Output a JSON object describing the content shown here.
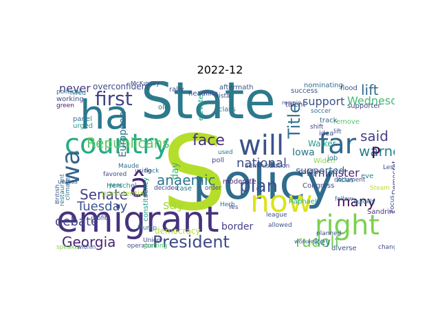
{
  "title": "2022-12",
  "words": [
    {
      "text": "State",
      "color": "#2c7a8c"
    },
    {
      "text": "policy",
      "color": "#2f6c8e"
    },
    {
      "text": "S",
      "color": "#b5de2b"
    },
    {
      "text": "ha",
      "color": "#2a788e"
    },
    {
      "text": "emigrant",
      "color": "#46327e"
    },
    {
      "text": "now",
      "color": "#dde318"
    },
    {
      "text": "right",
      "color": "#7ad151"
    },
    {
      "text": "country",
      "color": "#25ab82"
    },
    {
      "text": "will",
      "color": "#3b528b"
    },
    {
      "text": "far",
      "color": "#31688e"
    },
    {
      "text": "wa",
      "color": "#33638d"
    },
    {
      "text": "â",
      "color": "#482878"
    },
    {
      "text": "President",
      "color": "#3e4a89"
    },
    {
      "text": "first",
      "color": "#414487"
    },
    {
      "text": "Republicans",
      "color": "#5ec962"
    },
    {
      "text": "Senate",
      "color": "#424086"
    },
    {
      "text": "Georgia",
      "color": "#482475"
    },
    {
      "text": "plan",
      "color": "#3b528b"
    },
    {
      "text": "rudolf",
      "color": "#6ece58"
    },
    {
      "text": "anaemic",
      "color": "#2a768e"
    },
    {
      "text": "face",
      "color": "#472d7b"
    },
    {
      "text": "national",
      "color": "#3d4d8a"
    },
    {
      "text": "say",
      "color": "#9fda3a"
    },
    {
      "text": "Tuesday",
      "color": "#3a548c"
    },
    {
      "text": "debate",
      "color": "#414487"
    },
    {
      "text": "never",
      "color": "#443b84"
    },
    {
      "text": "lift",
      "color": "#31688e"
    },
    {
      "text": "said",
      "color": "#433e85"
    },
    {
      "text": "warned",
      "color": "#26828e"
    },
    {
      "text": "many",
      "color": "#440154"
    },
    {
      "text": "Wednesday",
      "color": "#3fbc73"
    },
    {
      "text": "support",
      "color": "#3a548c"
    },
    {
      "text": "Title",
      "color": "#2d708e"
    },
    {
      "text": "minister",
      "color": "#482576"
    },
    {
      "text": "democracy",
      "color": "#b2dd2d"
    },
    {
      "text": "European",
      "color": "#2e6f8e"
    },
    {
      "text": "day",
      "color": "#35b779"
    },
    {
      "text": "border",
      "color": "#433e85"
    },
    {
      "text": "Iowa",
      "color": "#2a778e"
    },
    {
      "text": "Walker",
      "color": "#1fa088"
    },
    {
      "text": "supported",
      "color": "#2e6e8e"
    },
    {
      "text": "P",
      "color": "#440154"
    },
    {
      "text": "key",
      "color": "#2d708e"
    },
    {
      "text": "overconfident",
      "color": "#3e4989"
    },
    {
      "text": "panel",
      "color": "#2a788e"
    },
    {
      "text": "urged",
      "color": "#1f978b"
    },
    {
      "text": "working",
      "color": "#3e4a89"
    },
    {
      "text": "Herschel",
      "color": "#218f8d"
    },
    {
      "text": "presidential",
      "color": "#a5db36"
    },
    {
      "text": "constituency",
      "color": "#1e9b8a"
    },
    {
      "text": "class",
      "color": "#2b748e"
    },
    {
      "text": "poll",
      "color": "#3e4989"
    },
    {
      "text": "moderate",
      "color": "#482878"
    },
    {
      "text": "elevated",
      "color": "#1f9f88"
    },
    {
      "text": "headline",
      "color": "#3e4a89"
    },
    {
      "text": "aftermath",
      "color": "#3c508b"
    },
    {
      "text": "Raphael",
      "color": "#29af7f"
    },
    {
      "text": "Widen",
      "color": "#87d549"
    },
    {
      "text": "diverse",
      "color": "#3c4f8a"
    },
    {
      "text": "flood",
      "color": "#3b528b"
    },
    {
      "text": "supporter",
      "color": "#433e85"
    },
    {
      "text": "nominating",
      "color": "#2f6c8e"
    },
    {
      "text": "success",
      "color": "#3b528b"
    },
    {
      "text": "remove",
      "color": "#52c569"
    },
    {
      "text": "Democrat",
      "color": "#453781"
    },
    {
      "text": "eve",
      "color": "#287d8e"
    },
    {
      "text": "idea",
      "color": "#3e4a89"
    },
    {
      "text": "talent",
      "color": "#472f7d"
    },
    {
      "text": "card",
      "color": "#481c6e"
    },
    {
      "text": "job",
      "color": "#2a778e"
    },
    {
      "text": "Atlas",
      "color": "#24878e"
    },
    {
      "text": "Sandrine",
      "color": "#46327e"
    },
    {
      "text": "track",
      "color": "#31688e"
    },
    {
      "text": "Congress",
      "color": "#3f4889"
    },
    {
      "text": "league",
      "color": "#3d4e8a"
    },
    {
      "text": "administration",
      "color": "#3b528b"
    },
    {
      "text": "Union",
      "color": "#404588"
    },
    {
      "text": "Plump",
      "color": "#2c718e"
    },
    {
      "text": "operator",
      "color": "#3e4989"
    },
    {
      "text": "grafting",
      "color": "#4ac16d"
    },
    {
      "text": "speaker",
      "color": "#84d44b"
    },
    {
      "text": "within",
      "color": "#3c4f8a"
    },
    {
      "text": "political",
      "color": "#2d708e"
    },
    {
      "text": "hired",
      "color": "#2e6f8e"
    },
    {
      "text": "green",
      "color": "#471365"
    },
    {
      "text": "unless",
      "color": "#3b528b"
    },
    {
      "text": "rally",
      "color": "#3e4a89"
    },
    {
      "text": "old",
      "color": "#2c728e"
    },
    {
      "text": "decided",
      "color": "#404688"
    },
    {
      "text": "using",
      "color": "#3d4e8a"
    },
    {
      "text": "flock",
      "color": "#2a788e"
    },
    {
      "text": "Maude",
      "color": "#2f6c8e"
    },
    {
      "text": "favored",
      "color": "#3f4889"
    },
    {
      "text": "year",
      "color": "#25848e"
    },
    {
      "text": "profit",
      "color": "#3b528b"
    },
    {
      "text": "vista",
      "color": "#3e4989"
    },
    {
      "text": "remain",
      "color": "#3b528b"
    },
    {
      "text": "soccer",
      "color": "#2e6e8e"
    },
    {
      "text": "shift",
      "color": "#424186"
    },
    {
      "text": "lift",
      "color": "#3d4e8a"
    },
    {
      "text": "document",
      "color": "#3b528b"
    },
    {
      "text": "fellow",
      "color": "#2d708e"
    },
    {
      "text": "planned",
      "color": "#3e4a89"
    },
    {
      "text": "workers",
      "color": "#3b528b"
    },
    {
      "text": "quickly",
      "color": "#2a788e"
    },
    {
      "text": "change",
      "color": "#3e4989"
    },
    {
      "text": "allowed",
      "color": "#3b528b"
    },
    {
      "text": "Herb",
      "color": "#2c728e"
    },
    {
      "text": "case",
      "color": "#2a788e"
    },
    {
      "text": "order",
      "color": "#3d4e8a"
    },
    {
      "text": "Yes",
      "color": "#3e4a89"
    },
    {
      "text": "used",
      "color": "#2c718e"
    },
    {
      "text": "McKinsey",
      "color": "#3e4a89"
    },
    {
      "text": "climate",
      "color": "#2f6c8e"
    },
    {
      "text": "British",
      "color": "#3b528b"
    },
    {
      "text": "restaurant",
      "color": "#2d708e"
    },
    {
      "text": "Less",
      "color": "#3e4989"
    },
    {
      "text": "Steam",
      "color": "#b8de29"
    },
    {
      "text": "Focus",
      "color": "#3b528b"
    }
  ]
}
